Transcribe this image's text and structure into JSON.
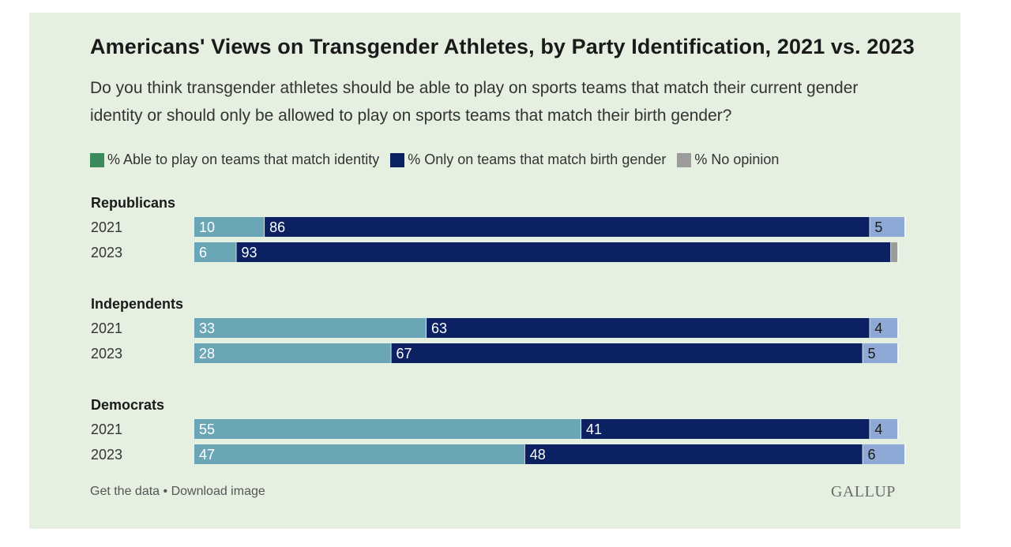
{
  "footer": {
    "get_data": "Get the data",
    "separator": "•",
    "download": "Download image",
    "brand": "GALLUP"
  },
  "colors": {
    "card_bg": "#e6f0e1",
    "identity": "#6aa6b6",
    "birth": "#0b2161",
    "no_opinion": "#8fa9d6",
    "no_opinion_legend": "#9b9b9b",
    "legend_identity": "#3a8a5c"
  },
  "chart_data": {
    "type": "bar",
    "orientation": "horizontal",
    "stacked": true,
    "title": "Americans' Views on Transgender Athletes, by Party Identification, 2021 vs. 2023",
    "subtitle": "Do you think transgender athletes should be able to play on sports teams that match their current gender identity or should only be allowed to play on sports teams that match their birth gender?",
    "legend": [
      "% Able to play on teams that match identity",
      "% Only on teams that match birth gender",
      "% No opinion"
    ],
    "groups": [
      {
        "name": "Republicans",
        "rows": [
          {
            "year": "2021",
            "identity": 10,
            "birth": 86,
            "no_opinion": 5
          },
          {
            "year": "2023",
            "identity": 6,
            "birth": 93,
            "no_opinion": 1
          }
        ]
      },
      {
        "name": "Independents",
        "rows": [
          {
            "year": "2021",
            "identity": 33,
            "birth": 63,
            "no_opinion": 4
          },
          {
            "year": "2023",
            "identity": 28,
            "birth": 67,
            "no_opinion": 5
          }
        ]
      },
      {
        "name": "Democrats",
        "rows": [
          {
            "year": "2021",
            "identity": 55,
            "birth": 41,
            "no_opinion": 4
          },
          {
            "year": "2023",
            "identity": 47,
            "birth": 48,
            "no_opinion": 6
          }
        ]
      }
    ],
    "xlim": [
      0,
      100
    ]
  }
}
